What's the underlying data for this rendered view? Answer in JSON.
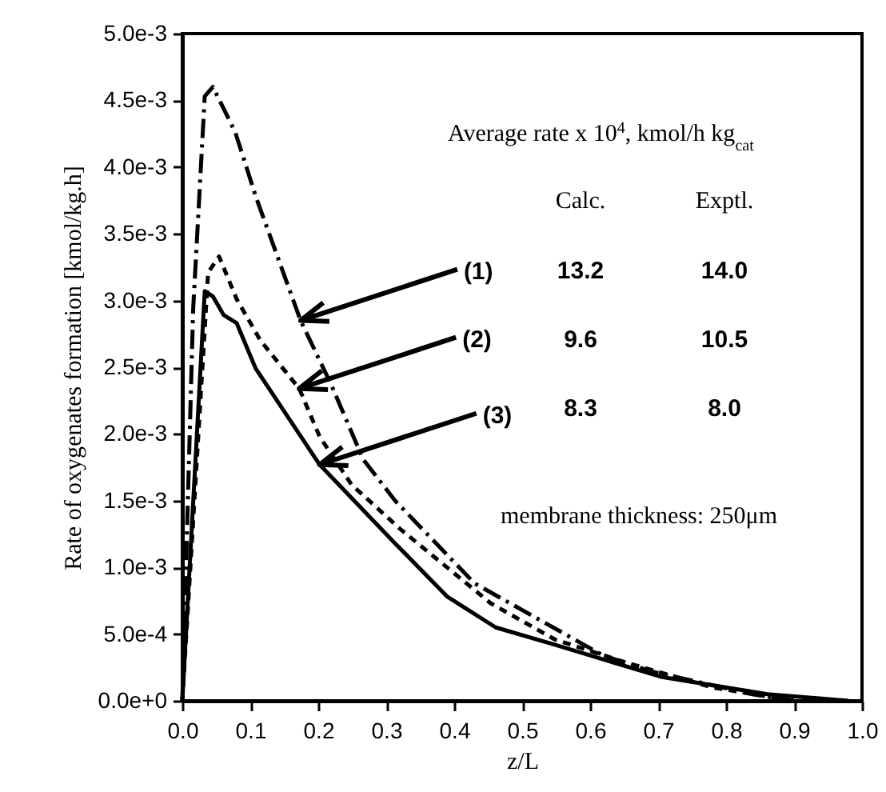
{
  "chart_data": {
    "type": "line",
    "xlabel": "z/L",
    "ylabel": "Rate of oxygenates formation [kmol/kg.h]",
    "xlim": [
      0,
      1
    ],
    "ylim": [
      0,
      0.005
    ],
    "xticks": [
      {
        "value": 0,
        "label": "0.0"
      },
      0.1,
      0.2,
      0.3,
      0.4,
      0.5,
      0.6,
      0.7,
      0.8,
      0.9,
      {
        "value": 1,
        "label": "1.0"
      }
    ],
    "yticks": [
      {
        "value": 0,
        "label": "0.0e+0"
      },
      {
        "value": 0.0005,
        "label": "5.0e-4"
      },
      {
        "value": 0.001,
        "label": "1.0e-3"
      },
      {
        "value": 0.0015,
        "label": "1.5e-3"
      },
      {
        "value": 0.002,
        "label": "2.0e-3"
      },
      {
        "value": 0.0025,
        "label": "2.5e-3"
      },
      {
        "value": 0.003,
        "label": "3.0e-3"
      },
      {
        "value": 0.0035,
        "label": "3.5e-3"
      },
      {
        "value": 0.004,
        "label": "4.0e-3"
      },
      {
        "value": 0.0045,
        "label": "4.5e-3"
      },
      {
        "value": 0.005,
        "label": "5.0e-3"
      }
    ],
    "grid": false,
    "marker": "none",
    "series": [
      {
        "color": "#000000",
        "line_style": "dashed",
        "x": [
          0,
          0.016,
          0.033,
          0.045,
          0.078,
          0.108,
          0.174,
          0.219,
          0.266,
          0.313,
          0.43,
          0.619,
          0.69,
          0.838,
          0.9
        ],
        "values": [
          0,
          0.00294,
          0.00453,
          0.0046,
          0.00426,
          0.00378,
          0.00285,
          0.00237,
          0.00181,
          0.0015,
          0.00088,
          0.00034,
          0.00022,
          5e-05,
          0
        ]
      },
      {
        "color": "#000000",
        "line_style": "dotted",
        "x": [
          0,
          0.038,
          0.054,
          0.08,
          0.115,
          0.172,
          0.202,
          0.249,
          0.32,
          0.454,
          0.548,
          0.657,
          0.78,
          0.9
        ],
        "values": [
          0,
          0.00321,
          0.00333,
          0.00301,
          0.0027,
          0.00234,
          0.00198,
          0.00162,
          0.00129,
          0.00073,
          0.00046,
          0.00028,
          0.0001,
          0
        ]
      },
      {
        "color": "#000000",
        "line_style": "solid",
        "x": [
          0,
          0.033,
          0.045,
          0.061,
          0.08,
          0.108,
          0.202,
          0.313,
          0.39,
          0.461,
          0.548,
          0.704,
          0.861,
          0.98
        ],
        "values": [
          0,
          0.00307,
          0.00303,
          0.00289,
          0.00283,
          0.00249,
          0.00177,
          0.00118,
          0.00078,
          0.00055,
          0.00042,
          0.00018,
          5e-05,
          0
        ]
      }
    ],
    "annotations": [
      "Average rate x 10$^{4}$, kmol/h kg$_{cat}$",
      "Calc.",
      "Exptl.",
      "13.2",
      "14.0",
      "9.6",
      "10.5",
      "8.3",
      "8.0",
      "membrane thickness: 250μm",
      {
        "text": "(1)",
        "x": 0.174,
        "y": 0.00285
      },
      {
        "text": "(2)",
        "x": 0.172,
        "y": 0.00234
      },
      {
        "text": "(3)",
        "x": 0.202,
        "y": 0.00177
      }
    ]
  }
}
